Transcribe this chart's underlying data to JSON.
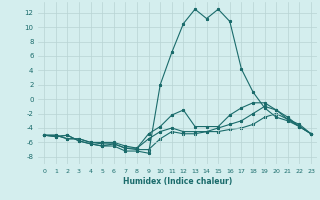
{
  "xlabel": "Humidex (Indice chaleur)",
  "background_color": "#d4eeee",
  "grid_color": "#b8d4d4",
  "line_color": "#1a6b6b",
  "x_data": [
    0,
    1,
    2,
    3,
    4,
    5,
    6,
    7,
    8,
    9,
    10,
    11,
    12,
    13,
    14,
    15,
    16,
    17,
    18,
    19,
    20,
    21,
    22,
    23
  ],
  "line_peak_y": [
    -5.0,
    -5.2,
    -5.0,
    -5.8,
    -6.2,
    -6.5,
    -6.5,
    -7.2,
    -7.2,
    -7.5,
    2.0,
    6.5,
    10.5,
    12.5,
    11.2,
    12.5,
    10.8,
    4.2,
    1.0,
    -1.2,
    -2.5,
    -3.0,
    -3.8,
    -4.8
  ],
  "line_flat1_y": [
    -5.0,
    -5.2,
    -5.0,
    -5.8,
    -6.2,
    -6.5,
    -6.2,
    -6.8,
    -6.8,
    -4.8,
    -3.8,
    -2.2,
    -1.5,
    -3.8,
    -3.8,
    -3.8,
    -2.2,
    -1.2,
    -0.5,
    -0.5,
    -1.5,
    -2.8,
    -3.5,
    -4.8
  ],
  "line_flat2_y": [
    -5.0,
    -5.0,
    -5.5,
    -5.5,
    -6.0,
    -6.0,
    -6.0,
    -6.5,
    -6.8,
    -5.5,
    -4.5,
    -4.0,
    -4.5,
    -4.5,
    -4.5,
    -4.0,
    -3.5,
    -3.0,
    -2.0,
    -1.0,
    -1.5,
    -2.5,
    -3.8,
    -4.8
  ],
  "line_flat3_y": [
    -5.0,
    -5.0,
    -5.5,
    -5.5,
    -6.0,
    -6.2,
    -6.2,
    -6.8,
    -7.0,
    -7.0,
    -5.5,
    -4.5,
    -4.8,
    -4.8,
    -4.5,
    -4.5,
    -4.2,
    -4.0,
    -3.5,
    -2.5,
    -2.0,
    -2.8,
    -3.8,
    -4.8
  ],
  "ylim": [
    -9,
    13.5
  ],
  "xlim": [
    -0.5,
    23.5
  ],
  "yticks": [
    -8,
    -6,
    -4,
    -2,
    0,
    2,
    4,
    6,
    8,
    10,
    12
  ],
  "xticks": [
    0,
    1,
    2,
    3,
    4,
    5,
    6,
    7,
    8,
    9,
    10,
    11,
    12,
    13,
    14,
    15,
    16,
    17,
    18,
    19,
    20,
    21,
    22,
    23
  ]
}
